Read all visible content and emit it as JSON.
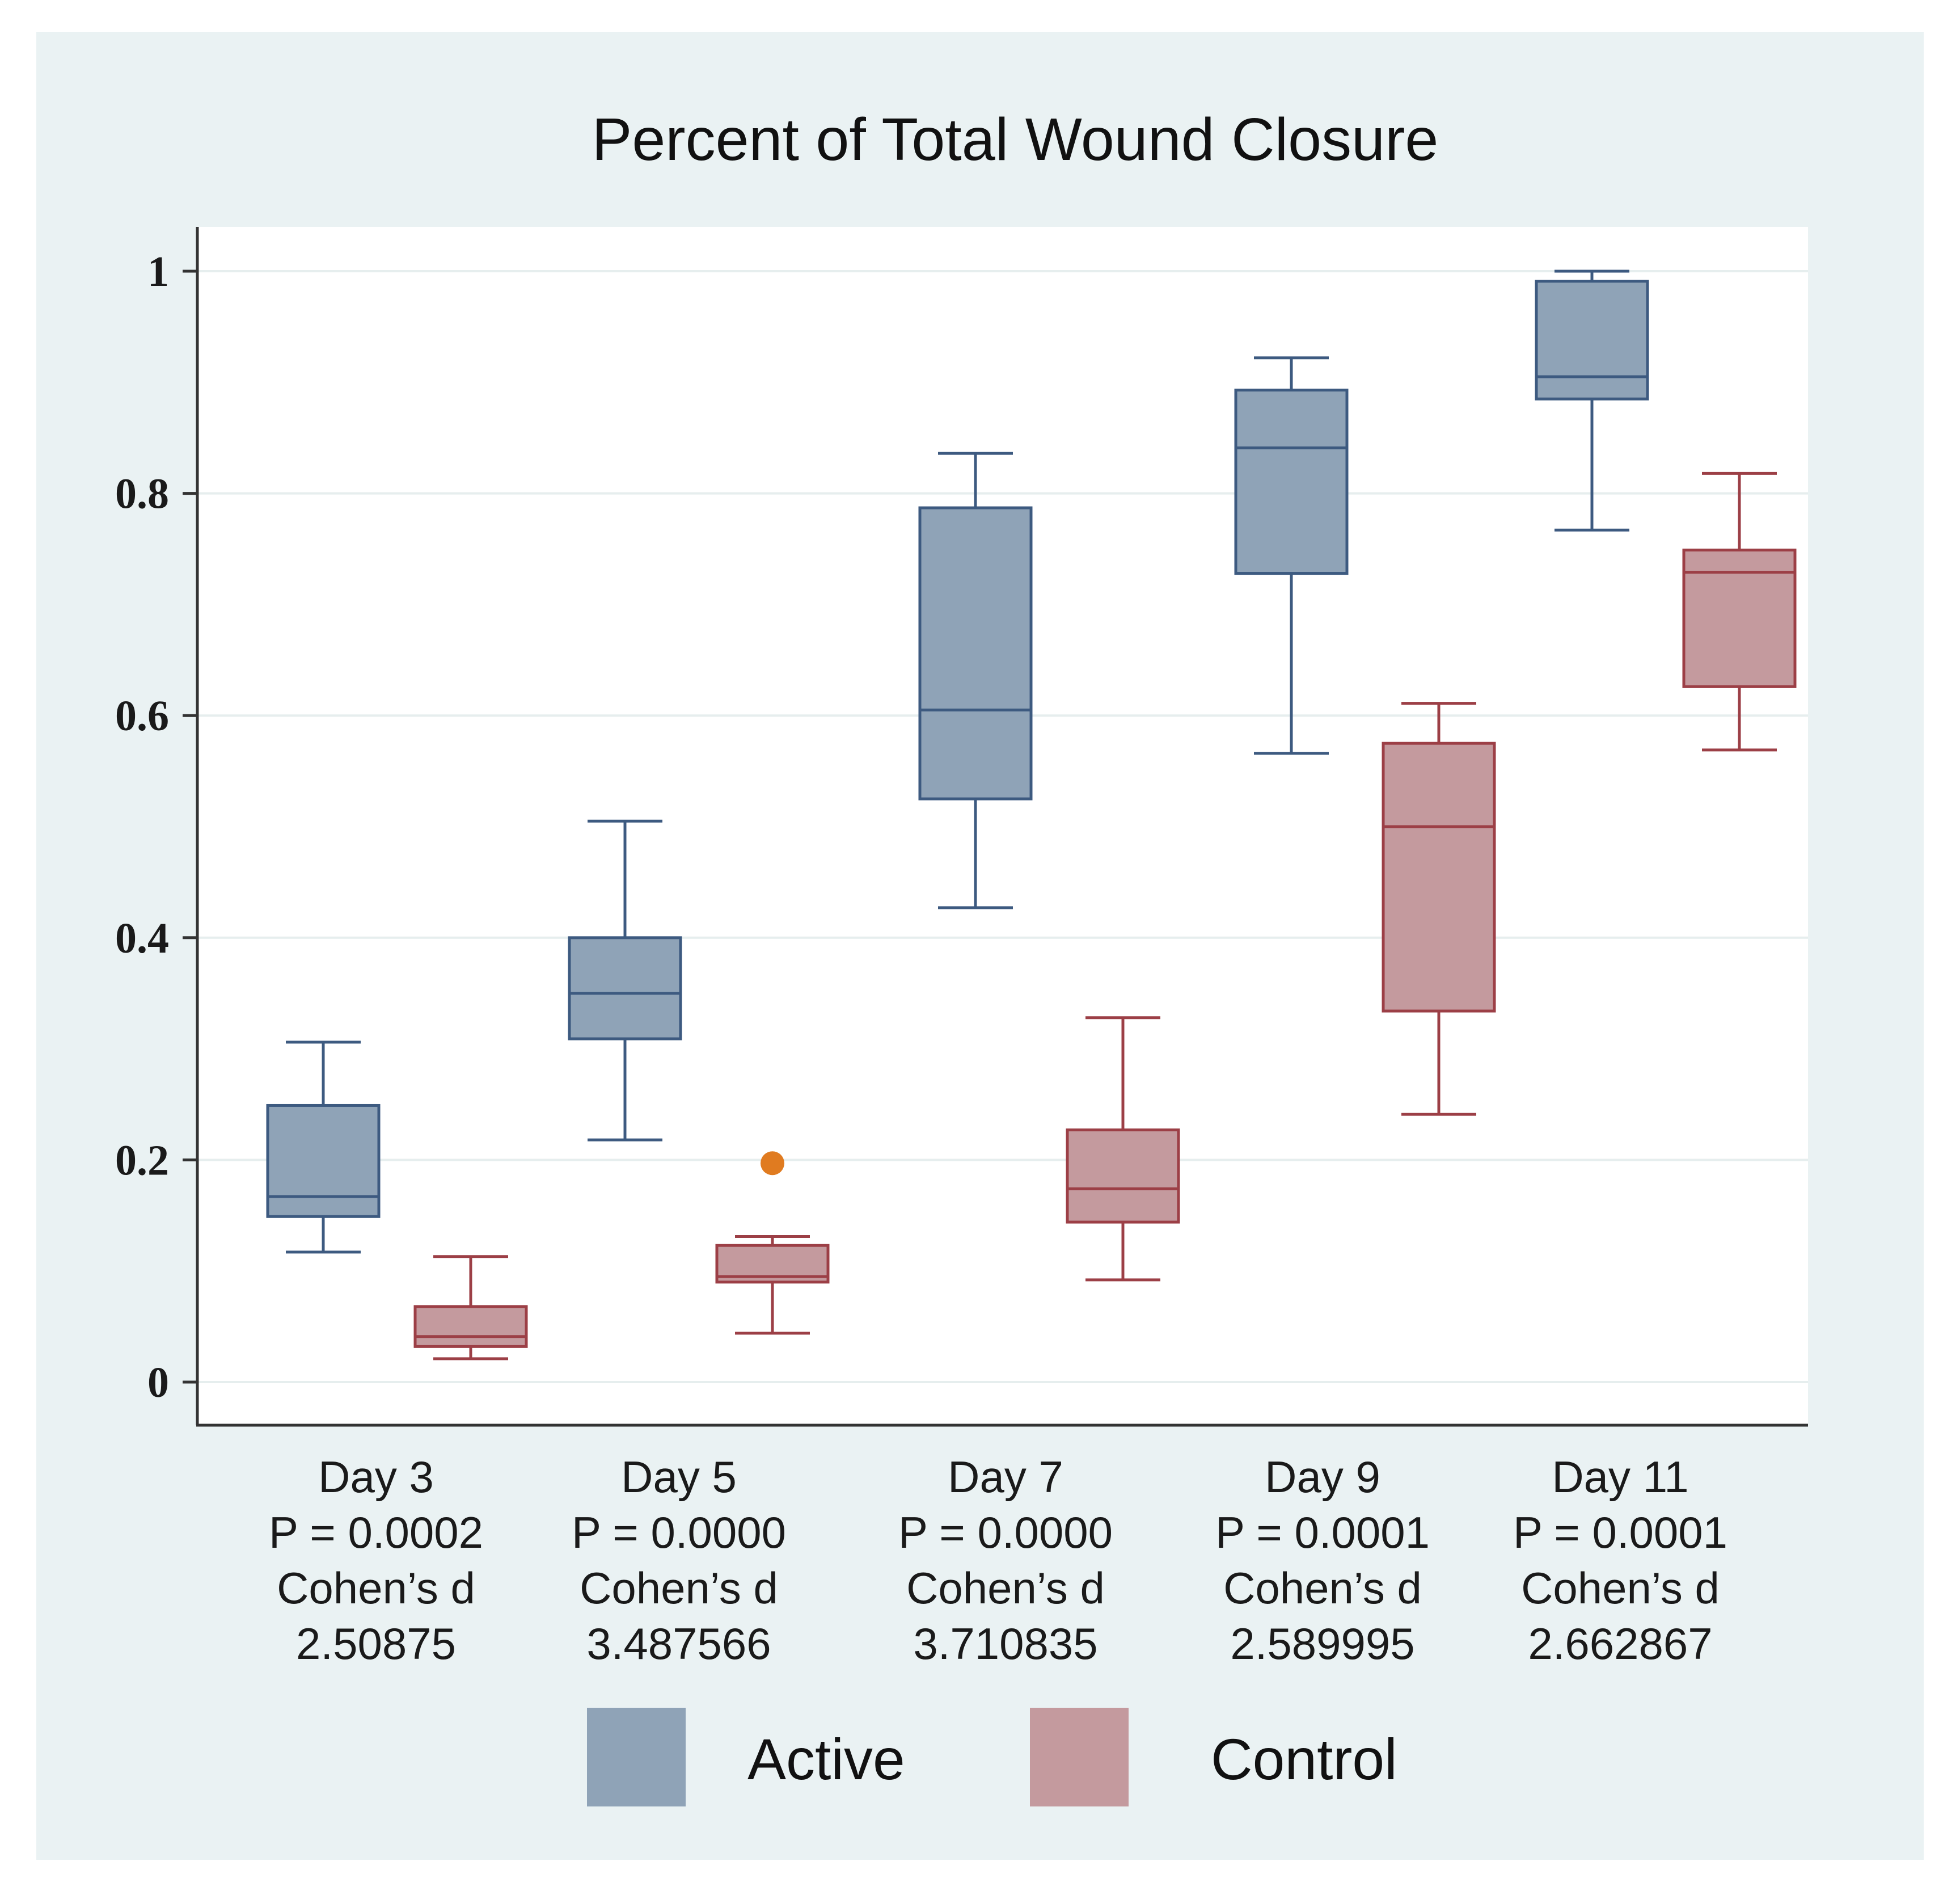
{
  "chart_data": {
    "type": "box",
    "title": "Percent of Total Wound Closure",
    "xlabel": "",
    "ylabel": "",
    "ylim": [
      0,
      1
    ],
    "y_ticks": [
      "0",
      "0.2",
      "0.4",
      "0.6",
      "0.8",
      "1"
    ],
    "y_tick_values": [
      0,
      0.2,
      0.4,
      0.6,
      0.8,
      1
    ],
    "grid": true,
    "legend_position": "bottom",
    "categories": [
      {
        "day": "Day 3",
        "p": "P = 0.0002",
        "effect_label": "Cohen’s d",
        "effect": "2.50875"
      },
      {
        "day": "Day 5",
        "p": "P = 0.0000",
        "effect_label": "Cohen’s d",
        "effect": "3.487566"
      },
      {
        "day": "Day 7",
        "p": "P = 0.0000",
        "effect_label": "Cohen’s d",
        "effect": "3.710835"
      },
      {
        "day": "Day 9",
        "p": "P = 0.0001",
        "effect_label": "Cohen’s d",
        "effect": "2.589995"
      },
      {
        "day": "Day 11",
        "p": "P = 0.0001",
        "effect_label": "Cohen’s d",
        "effect": "2.662867"
      }
    ],
    "series": [
      {
        "name": "Active",
        "fill": "#8fa3b7",
        "stroke": "#3d5a80",
        "boxes": [
          {
            "min": 0.117,
            "q1": 0.149,
            "median": 0.167,
            "q3": 0.249,
            "max": 0.306,
            "outliers": []
          },
          {
            "min": 0.218,
            "q1": 0.309,
            "median": 0.35,
            "q3": 0.4,
            "max": 0.505,
            "outliers": []
          },
          {
            "min": 0.427,
            "q1": 0.525,
            "median": 0.605,
            "q3": 0.787,
            "max": 0.836,
            "outliers": []
          },
          {
            "min": 0.566,
            "q1": 0.728,
            "median": 0.841,
            "q3": 0.893,
            "max": 0.922,
            "outliers": []
          },
          {
            "min": 0.767,
            "q1": 0.885,
            "median": 0.905,
            "q3": 0.991,
            "max": 1.0,
            "outliers": []
          }
        ]
      },
      {
        "name": "Control",
        "fill": "#c49a9e",
        "stroke": "#9c3f46",
        "outlier_color": "#e07b20",
        "boxes": [
          {
            "min": 0.021,
            "q1": 0.032,
            "median": 0.041,
            "q3": 0.068,
            "max": 0.113,
            "outliers": []
          },
          {
            "min": 0.044,
            "q1": 0.09,
            "median": 0.095,
            "q3": 0.123,
            "max": 0.131,
            "outliers": [
              0.197
            ]
          },
          {
            "min": 0.092,
            "q1": 0.144,
            "median": 0.174,
            "q3": 0.227,
            "max": 0.328,
            "outliers": []
          },
          {
            "min": 0.241,
            "q1": 0.334,
            "median": 0.5,
            "q3": 0.575,
            "max": 0.611,
            "outliers": []
          },
          {
            "min": 0.569,
            "q1": 0.626,
            "median": 0.729,
            "q3": 0.749,
            "max": 0.818,
            "outliers": []
          }
        ]
      }
    ]
  }
}
